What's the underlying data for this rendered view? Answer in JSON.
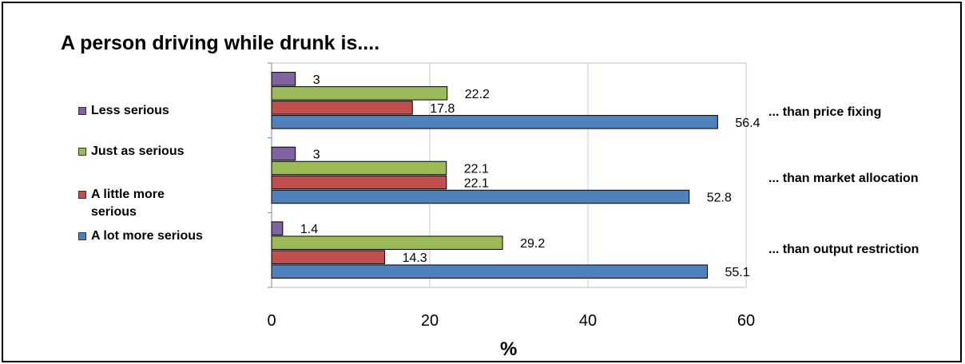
{
  "title": "A person driving while drunk is....",
  "legend": [
    {
      "label": "Less serious",
      "color": "#8064A2"
    },
    {
      "label": "Just as serious",
      "color": "#9BBB59"
    },
    {
      "label": "A little more serious",
      "color": "#C0504D"
    },
    {
      "label": "A lot more serious",
      "color": "#4F81BD"
    }
  ],
  "chart_data": {
    "type": "bar",
    "orientation": "horizontal",
    "title": "A person driving while drunk is....",
    "xlabel": "%",
    "ylabel": "",
    "xlim": [
      0,
      60
    ],
    "xticks": [
      0,
      20,
      40,
      60
    ],
    "grid": true,
    "legend_position": "left",
    "categories": [
      "... than price fixing",
      "... than market allocation",
      "... than output restriction"
    ],
    "series": [
      {
        "name": "Less serious",
        "color": "#8064A2",
        "values": [
          3,
          3,
          1.4
        ]
      },
      {
        "name": "Just as serious",
        "color": "#9BBB59",
        "values": [
          22.2,
          22.1,
          29.2
        ]
      },
      {
        "name": "A little more serious",
        "color": "#C0504D",
        "values": [
          17.8,
          22.1,
          14.3
        ]
      },
      {
        "name": "A lot more serious",
        "color": "#4F81BD",
        "values": [
          56.4,
          52.8,
          55.1
        ]
      }
    ]
  }
}
